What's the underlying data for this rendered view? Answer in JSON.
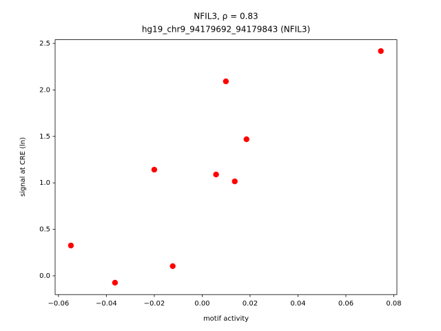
{
  "chart_data": {
    "type": "scatter",
    "title": "NFIL3, ρ = 0.83",
    "subtitle": "hg19_chr9_94179692_94179843 (NFIL3)",
    "x_label": "motif activity",
    "y_label": "signal at CRE (ln)",
    "color": "#ff0000",
    "x": [
      -0.0548,
      -0.0364,
      -0.02,
      -0.0123,
      0.0058,
      0.0099,
      0.0136,
      0.0185,
      0.0746
    ],
    "values": [
      0.326,
      -0.074,
      1.142,
      0.104,
      1.09,
      2.092,
      1.016,
      1.469,
      2.418
    ],
    "xlim": [
      -0.0614,
      0.0813
    ],
    "ylim": [
      -0.202,
      2.54
    ],
    "xticks": [
      {
        "value": -0.06,
        "label": "−0.06"
      },
      {
        "value": -0.04,
        "label": "−0.04"
      },
      {
        "value": -0.02,
        "label": "−0.02"
      },
      {
        "value": 0,
        "label": "0.00"
      },
      {
        "value": 0.02,
        "label": "0.02"
      },
      {
        "value": 0.04,
        "label": "0.04"
      },
      {
        "value": 0.06,
        "label": "0.06"
      },
      {
        "value": 0.08,
        "label": "0.08"
      }
    ],
    "yticks": [
      {
        "value": 0,
        "label": "0.0"
      },
      0.5,
      {
        "value": 1,
        "label": "1.0"
      },
      1.5,
      {
        "value": 2,
        "label": "2.0"
      },
      2.5
    ],
    "grid": false
  }
}
